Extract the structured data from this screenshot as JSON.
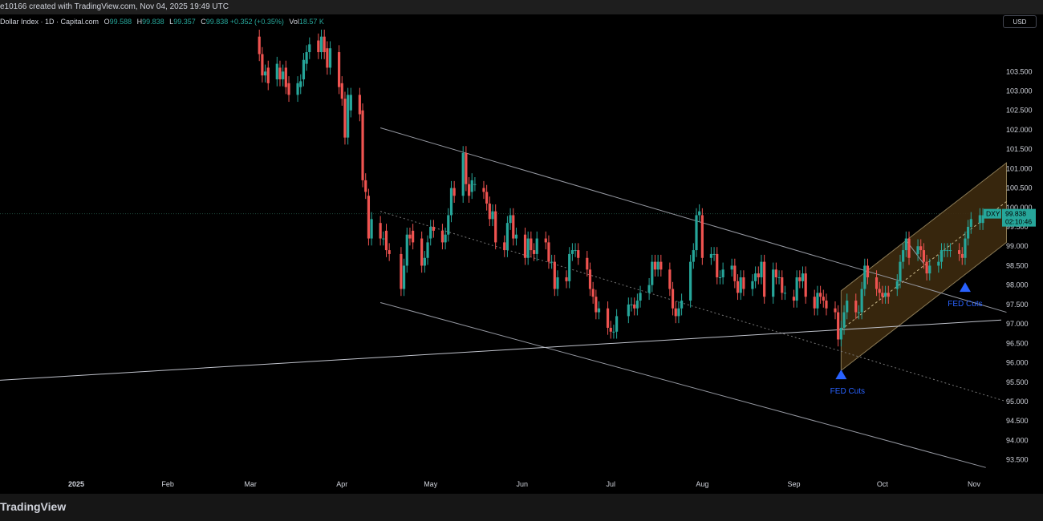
{
  "header": {
    "text": "e10166 created with TradingView.com, Nov 04, 2025 19:49 UTC"
  },
  "legend": {
    "title": "Dollar Index · 1D · Capital.com",
    "o_label": "O",
    "o_val": "99.588",
    "h_label": "H",
    "h_val": "99.838",
    "l_label": "L",
    "l_val": "99.357",
    "c_label": "C",
    "c_val": "99.838",
    "change": "+0.352 (+0.35%)",
    "vol_label": "Vol",
    "vol_val": "18.57 K"
  },
  "currency_button": "USD",
  "brand": "TradingView",
  "colors": {
    "up": "#26a69a",
    "down": "#ef5350",
    "channel_fill": "#3d2a0e",
    "annotation": "#2962ff"
  },
  "price_tag": {
    "symbol": "DXY",
    "price": "99.838",
    "countdown": "02:10:46"
  },
  "chart_data": {
    "type": "candlestick",
    "symbol": "DXY",
    "ylim": [
      93.1,
      104.6
    ],
    "y_ticks": [
      "103.500",
      "103.000",
      "102.500",
      "102.000",
      "101.500",
      "101.000",
      "100.500",
      "100.000",
      "99.500",
      "99.000",
      "98.500",
      "98.000",
      "97.500",
      "97.000",
      "96.500",
      "96.000",
      "95.500",
      "95.000",
      "94.500",
      "94.000",
      "93.500"
    ],
    "x_ticks": [
      {
        "label": "2025",
        "date": "2025-01-01"
      },
      {
        "label": "Feb",
        "date": "2025-02-01"
      },
      {
        "label": "Mar",
        "date": "2025-03-01"
      },
      {
        "label": "Apr",
        "date": "2025-04-01"
      },
      {
        "label": "May",
        "date": "2025-05-01"
      },
      {
        "label": "Jun",
        "date": "2025-06-01"
      },
      {
        "label": "Jul",
        "date": "2025-07-01"
      },
      {
        "label": "Aug",
        "date": "2025-08-01"
      },
      {
        "label": "Sep",
        "date": "2025-09-01"
      },
      {
        "label": "Oct",
        "date": "2025-10-01"
      },
      {
        "label": "Nov",
        "date": "2025-11-01"
      }
    ],
    "price_line": 99.838,
    "candles": [
      [
        "2025-03-04",
        104.4,
        103.95
      ],
      [
        "2025-03-05",
        103.95,
        103.4
      ],
      [
        "2025-03-06",
        103.4,
        103.5
      ],
      [
        "2025-03-07",
        103.6,
        103.2
      ],
      [
        "2025-03-10",
        103.3,
        103.7
      ],
      [
        "2025-03-11",
        103.6,
        103.3
      ],
      [
        "2025-03-12",
        103.3,
        103.5
      ],
      [
        "2025-03-13",
        103.6,
        103.1
      ],
      [
        "2025-03-14",
        103.2,
        102.9
      ],
      [
        "2025-03-17",
        102.9,
        103.2
      ],
      [
        "2025-03-18",
        103.1,
        103.25
      ],
      [
        "2025-03-19",
        103.3,
        103.8
      ],
      [
        "2025-03-20",
        103.7,
        104.0
      ],
      [
        "2025-03-21",
        104.0,
        104.2
      ],
      [
        "2025-03-24",
        104.3,
        104.0
      ],
      [
        "2025-03-25",
        104.0,
        104.4
      ],
      [
        "2025-03-26",
        104.4,
        104.0
      ],
      [
        "2025-03-27",
        104.1,
        103.6
      ],
      [
        "2025-03-28",
        103.6,
        104.1
      ],
      [
        "2025-03-31",
        104.0,
        103.1
      ],
      [
        "2025-04-01",
        103.2,
        102.8
      ],
      [
        "2025-04-02",
        102.8,
        101.8
      ],
      [
        "2025-04-03",
        101.8,
        102.9
      ],
      [
        "2025-04-04",
        102.5,
        102.9
      ],
      [
        "2025-04-07",
        102.9,
        102.4
      ],
      [
        "2025-04-08",
        102.5,
        100.7
      ],
      [
        "2025-04-09",
        100.7,
        100.4
      ],
      [
        "2025-04-10",
        100.3,
        99.2
      ],
      [
        "2025-04-11",
        99.2,
        99.7
      ],
      [
        "2025-04-14",
        99.6,
        99.2
      ],
      [
        "2025-04-15",
        99.2,
        99.2
      ],
      [
        "2025-04-16",
        99.4,
        98.9
      ],
      [
        "2025-04-17",
        98.9,
        98.8
      ],
      [
        "2025-04-21",
        98.8,
        97.9
      ],
      [
        "2025-04-22",
        97.9,
        98.5
      ],
      [
        "2025-04-23",
        98.5,
        99.3
      ],
      [
        "2025-04-24",
        99.3,
        99.2
      ],
      [
        "2025-04-25",
        99.4,
        99.1
      ],
      [
        "2025-04-28",
        99.2,
        98.5
      ],
      [
        "2025-04-29",
        98.5,
        98.7
      ],
      [
        "2025-04-30",
        98.7,
        99.1
      ],
      [
        "2025-05-01",
        99.2,
        99.5
      ],
      [
        "2025-05-02",
        99.5,
        99.4
      ],
      [
        "2025-05-05",
        99.4,
        99.1
      ],
      [
        "2025-05-06",
        99.1,
        99.3
      ],
      [
        "2025-05-07",
        99.3,
        99.8
      ],
      [
        "2025-05-08",
        99.8,
        100.5
      ],
      [
        "2025-05-09",
        100.5,
        100.3
      ],
      [
        "2025-05-12",
        100.3,
        101.4
      ],
      [
        "2025-05-13",
        101.4,
        100.6
      ],
      [
        "2025-05-14",
        100.6,
        100.3
      ],
      [
        "2025-05-15",
        100.4,
        100.7
      ],
      [
        "2025-05-16",
        100.6,
        100.6
      ],
      [
        "2025-05-19",
        100.5,
        100.4
      ],
      [
        "2025-05-20",
        100.4,
        100.1
      ],
      [
        "2025-05-21",
        100.1,
        99.7
      ],
      [
        "2025-05-22",
        99.7,
        99.9
      ],
      [
        "2025-05-23",
        99.9,
        99.1
      ],
      [
        "2025-05-26",
        99.1,
        98.9
      ],
      [
        "2025-05-27",
        98.9,
        99.6
      ],
      [
        "2025-05-28",
        99.6,
        99.8
      ],
      [
        "2025-05-29",
        99.8,
        99.2
      ],
      [
        "2025-05-30",
        99.2,
        99.3
      ],
      [
        "2025-06-02",
        99.3,
        98.7
      ],
      [
        "2025-06-03",
        98.7,
        99.2
      ],
      [
        "2025-06-04",
        99.2,
        98.9
      ],
      [
        "2025-06-05",
        98.9,
        98.8
      ],
      [
        "2025-06-06",
        98.8,
        99.2
      ],
      [
        "2025-06-09",
        99.2,
        99.1
      ],
      [
        "2025-06-10",
        99.1,
        98.6
      ],
      [
        "2025-06-11",
        98.6,
        98.6
      ],
      [
        "2025-06-12",
        98.6,
        97.9
      ],
      [
        "2025-06-13",
        97.9,
        98.2
      ],
      [
        "2025-06-16",
        98.2,
        98.1
      ],
      [
        "2025-06-17",
        98.1,
        98.8
      ],
      [
        "2025-06-18",
        98.8,
        98.9
      ],
      [
        "2025-06-19",
        98.9,
        98.9
      ],
      [
        "2025-06-20",
        98.9,
        98.7
      ],
      [
        "2025-06-23",
        98.7,
        98.4
      ],
      [
        "2025-06-24",
        98.4,
        97.9
      ],
      [
        "2025-06-25",
        97.9,
        97.7
      ],
      [
        "2025-06-26",
        97.7,
        97.3
      ],
      [
        "2025-06-27",
        97.3,
        97.4
      ],
      [
        "2025-06-30",
        97.4,
        96.9
      ],
      [
        "2025-07-01",
        96.9,
        96.8
      ],
      [
        "2025-07-02",
        96.8,
        96.8
      ],
      [
        "2025-07-03",
        96.8,
        97.2
      ],
      [
        "2025-07-07",
        97.2,
        97.5
      ],
      [
        "2025-07-08",
        97.5,
        97.5
      ],
      [
        "2025-07-09",
        97.5,
        97.4
      ],
      [
        "2025-07-10",
        97.4,
        97.6
      ],
      [
        "2025-07-11",
        97.6,
        97.8
      ],
      [
        "2025-07-14",
        97.8,
        98.0
      ],
      [
        "2025-07-15",
        98.0,
        98.6
      ],
      [
        "2025-07-16",
        98.6,
        98.4
      ],
      [
        "2025-07-17",
        98.4,
        98.6
      ],
      [
        "2025-07-18",
        98.6,
        98.4
      ],
      [
        "2025-07-21",
        98.4,
        97.9
      ],
      [
        "2025-07-22",
        97.9,
        97.4
      ],
      [
        "2025-07-23",
        97.4,
        97.2
      ],
      [
        "2025-07-24",
        97.2,
        97.4
      ],
      [
        "2025-07-25",
        97.4,
        97.6
      ],
      [
        "2025-07-28",
        97.6,
        98.6
      ],
      [
        "2025-07-29",
        98.6,
        98.9
      ],
      [
        "2025-07-30",
        98.9,
        99.8
      ],
      [
        "2025-07-31",
        99.8,
        99.9
      ],
      [
        "2025-08-01",
        99.8,
        98.7
      ],
      [
        "2025-08-04",
        98.7,
        98.8
      ],
      [
        "2025-08-05",
        98.8,
        98.8
      ],
      [
        "2025-08-06",
        98.8,
        98.2
      ],
      [
        "2025-08-07",
        98.2,
        98.2
      ],
      [
        "2025-08-08",
        98.2,
        98.4
      ],
      [
        "2025-08-11",
        98.4,
        98.5
      ],
      [
        "2025-08-12",
        98.5,
        98.1
      ],
      [
        "2025-08-13",
        98.1,
        97.8
      ],
      [
        "2025-08-14",
        97.8,
        98.2
      ],
      [
        "2025-08-15",
        98.2,
        97.9
      ],
      [
        "2025-08-18",
        97.9,
        98.1
      ],
      [
        "2025-08-19",
        98.1,
        98.3
      ],
      [
        "2025-08-20",
        98.3,
        98.2
      ],
      [
        "2025-08-21",
        98.2,
        98.6
      ],
      [
        "2025-08-22",
        98.6,
        97.7
      ],
      [
        "2025-08-25",
        97.7,
        98.4
      ],
      [
        "2025-08-26",
        98.4,
        98.2
      ],
      [
        "2025-08-27",
        98.2,
        98.2
      ],
      [
        "2025-08-28",
        98.2,
        97.8
      ],
      [
        "2025-08-29",
        97.8,
        97.8
      ],
      [
        "2025-09-01",
        97.7,
        97.6
      ],
      [
        "2025-09-02",
        97.6,
        98.2
      ],
      [
        "2025-09-03",
        98.2,
        98.1
      ],
      [
        "2025-09-04",
        98.1,
        98.3
      ],
      [
        "2025-09-05",
        98.3,
        97.7
      ],
      [
        "2025-09-08",
        97.7,
        97.4
      ],
      [
        "2025-09-09",
        97.4,
        97.8
      ],
      [
        "2025-09-10",
        97.8,
        97.7
      ],
      [
        "2025-09-11",
        97.7,
        97.6
      ],
      [
        "2025-09-12",
        97.6,
        97.4
      ],
      [
        "2025-09-15",
        97.4,
        97.3
      ],
      [
        "2025-09-16",
        97.3,
        96.6
      ],
      [
        "2025-09-17",
        96.6,
        96.9
      ],
      [
        "2025-09-18",
        96.9,
        97.3
      ],
      [
        "2025-09-19",
        97.3,
        97.6
      ],
      [
        "2025-09-22",
        97.6,
        97.3
      ],
      [
        "2025-09-23",
        97.3,
        97.3
      ],
      [
        "2025-09-24",
        97.3,
        97.9
      ],
      [
        "2025-09-25",
        97.9,
        98.5
      ],
      [
        "2025-09-26",
        98.5,
        98.2
      ],
      [
        "2025-09-29",
        98.2,
        97.9
      ],
      [
        "2025-09-30",
        97.9,
        97.8
      ],
      [
        "2025-10-01",
        97.8,
        97.7
      ],
      [
        "2025-10-02",
        97.7,
        97.8
      ],
      [
        "2025-10-03",
        97.8,
        97.7
      ],
      [
        "2025-10-06",
        97.9,
        98.1
      ],
      [
        "2025-10-07",
        98.1,
        98.6
      ],
      [
        "2025-10-08",
        98.6,
        98.9
      ],
      [
        "2025-10-09",
        98.9,
        99.2
      ],
      [
        "2025-10-10",
        99.2,
        98.7
      ],
      [
        "2025-10-13",
        98.8,
        99.0
      ],
      [
        "2025-10-14",
        99.0,
        98.9
      ],
      [
        "2025-10-15",
        98.9,
        98.6
      ],
      [
        "2025-10-16",
        98.6,
        98.3
      ],
      [
        "2025-10-17",
        98.3,
        98.5
      ],
      [
        "2025-10-20",
        98.5,
        98.6
      ],
      [
        "2025-10-21",
        98.6,
        98.9
      ],
      [
        "2025-10-22",
        98.9,
        98.9
      ],
      [
        "2025-10-23",
        98.9,
        98.9
      ],
      [
        "2025-10-24",
        98.9,
        98.9
      ],
      [
        "2025-10-27",
        98.9,
        98.8
      ],
      [
        "2025-10-28",
        98.8,
        98.7
      ],
      [
        "2025-10-29",
        98.7,
        99.2
      ],
      [
        "2025-10-30",
        99.2,
        99.5
      ],
      [
        "2025-10-31",
        99.5,
        99.7
      ],
      [
        "2025-11-03",
        99.6,
        99.8
      ],
      [
        "2025-11-04",
        99.6,
        99.8
      ]
    ],
    "annotations": [
      {
        "text": "FED Cuts",
        "date": "2025-09-17",
        "price": 95.7,
        "below": true
      },
      {
        "text": "FED Cuts",
        "date": "2025-10-29",
        "price": 97.95,
        "below": false
      }
    ]
  }
}
